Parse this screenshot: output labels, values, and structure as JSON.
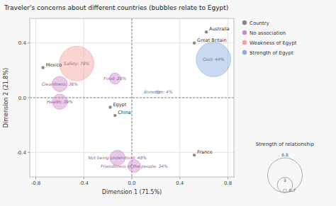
{
  "chart_data": {
    "type": "bubble",
    "title": "Traveler's concerns about different countries (bubbles relate to Egypt)",
    "xlabel": "Dimension 1 (71.5%)",
    "ylabel": "Dimension 2 (21.8%)",
    "xlim": [
      -0.85,
      0.85
    ],
    "ylim": [
      -0.58,
      0.58
    ],
    "xticks": [
      -0.8,
      -0.4,
      {
        "value": 0,
        "label": "0.0"
      },
      0.4,
      0.8
    ],
    "yticks": [
      -0.4,
      {
        "value": 0,
        "label": "0.0"
      },
      0.4
    ],
    "grid": true,
    "legend": "right",
    "countries": [
      {
        "name": "Mexico",
        "x": -0.74,
        "y": 0.22,
        "color": "#888888"
      },
      {
        "name": "Egypt",
        "x": -0.18,
        "y": -0.07,
        "color": "#888888"
      },
      {
        "name": "China",
        "x": -0.14,
        "y": -0.13,
        "color": "#888888"
      },
      {
        "name": "Australia",
        "x": 0.62,
        "y": 0.48,
        "color": "#888888"
      },
      {
        "name": "Great Britain",
        "x": 0.52,
        "y": 0.4,
        "color": "#888888"
      },
      {
        "name": "France",
        "x": 0.52,
        "y": -0.42,
        "color": "#888888"
      }
    ],
    "bubbles": [
      {
        "label": "Safety: 78%",
        "x": -0.46,
        "y": 0.25,
        "size": 6.8,
        "color": "#f4a09a"
      },
      {
        "label": "Cleanliness: 36%",
        "x": -0.6,
        "y": 0.1,
        "size": 3.0,
        "color": "#cc88cc"
      },
      {
        "label": "Health: 39%",
        "x": -0.6,
        "y": -0.03,
        "size": 3.0,
        "color": "#cc88cc"
      },
      {
        "label": "Food: 28%",
        "x": -0.14,
        "y": 0.14,
        "size": 2.2,
        "color": "#cc88cc"
      },
      {
        "label": "Boredom: 4%",
        "x": 0.22,
        "y": 0.04,
        "size": 0.7,
        "color": "#88aadd"
      },
      {
        "label": "Cost: 44%",
        "x": 0.68,
        "y": 0.28,
        "size": 6.8,
        "color": "#88aadd"
      },
      {
        "label": "Not being understood: 48%",
        "x": -0.12,
        "y": -0.44,
        "size": 3.0,
        "color": "#cc88cc"
      },
      {
        "label": "Friendliness of the people: 34%",
        "x": 0.02,
        "y": -0.5,
        "size": 2.5,
        "color": "#cc88cc"
      }
    ],
    "legend_items": [
      {
        "label": "Country",
        "color": "#888888"
      },
      {
        "label": "No association",
        "color": "#cc88cc"
      },
      {
        "label": "Weakness of Egypt",
        "color": "#f4a09a"
      },
      {
        "label": "Strength of Egypt",
        "color": "#88aadd"
      }
    ],
    "size_legend": {
      "title": "Strength of relationship",
      "values": [
        6.8,
        3,
        0.7
      ]
    }
  }
}
